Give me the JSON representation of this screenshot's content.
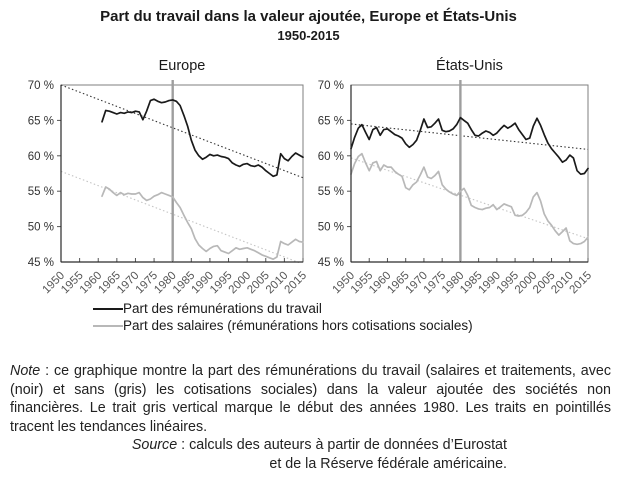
{
  "title": "Part du travail dans la valeur ajoutée, Europe et États-Unis",
  "subtitle": "1950-2015",
  "legend": [
    {
      "label": "Part des rémunérations du travail",
      "color": "#1a1a1a"
    },
    {
      "label": "Part des salaires (rémunérations hors cotisations sociales)",
      "color": "#b8b8b8"
    }
  ],
  "note": {
    "label": "Note",
    "text": " : ce graphique montre la part des rémunérations du travail (salaires et traitements, avec (noir) et sans (gris) les cotisations sociales) dans la valeur ajoutée des sociétés non financières. Le trait gris vertical marque le début des années 1980. Les traits en pointillés tracent les tendances linéaires."
  },
  "source": {
    "label": "Source",
    "line1": " : calculs des auteurs à partir de données d’Eurostat",
    "line2": "et de la Réserve fédérale américaine."
  },
  "colors": {
    "series_black": "#1a1a1a",
    "series_gray": "#b8b8b8",
    "trend_black": "#333333",
    "trend_gray": "#c4c4c4",
    "vline_gray": "#9e9e9e",
    "box_border": "#7f7f7f"
  },
  "chart_data": [
    {
      "type": "line",
      "title": "Europe",
      "xlim": [
        1950,
        2015
      ],
      "ylim": [
        45,
        70
      ],
      "xticks": [
        1950,
        1955,
        1960,
        1965,
        1970,
        1975,
        1980,
        1985,
        1990,
        1995,
        2000,
        2005,
        2010,
        2015
      ],
      "yticks": [
        70,
        65,
        60,
        55,
        50,
        45
      ],
      "ytick_suffix": " %",
      "vline_x": 1980,
      "x": [
        1961,
        1962,
        1963,
        1964,
        1965,
        1966,
        1967,
        1968,
        1969,
        1970,
        1971,
        1972,
        1973,
        1974,
        1975,
        1976,
        1977,
        1978,
        1979,
        1980,
        1981,
        1982,
        1983,
        1984,
        1985,
        1986,
        1987,
        1988,
        1989,
        1990,
        1991,
        1992,
        1993,
        1994,
        1995,
        1996,
        1997,
        1998,
        1999,
        2000,
        2001,
        2002,
        2003,
        2004,
        2005,
        2006,
        2007,
        2008,
        2009,
        2010,
        2011,
        2012,
        2013,
        2014,
        2015
      ],
      "series": [
        {
          "name": "Part des rémunérations du travail",
          "color": "#1a1a1a",
          "values": [
            64.8,
            66.4,
            66.3,
            66.1,
            65.9,
            66.1,
            66.0,
            66.2,
            66.1,
            66.3,
            66.2,
            65.1,
            66.3,
            67.8,
            68.0,
            67.7,
            67.5,
            67.6,
            67.8,
            67.9,
            67.7,
            67.1,
            65.7,
            64.2,
            62.2,
            60.8,
            60.0,
            59.5,
            59.8,
            60.2,
            60.0,
            60.1,
            59.9,
            59.8,
            59.6,
            59.0,
            58.7,
            58.5,
            58.8,
            58.9,
            58.6,
            58.5,
            58.7,
            58.4,
            57.9,
            57.5,
            57.1,
            57.3,
            60.3,
            59.6,
            59.3,
            59.9,
            60.4,
            60.1,
            59.8
          ]
        },
        {
          "name": "Part des salaires (rémunérations hors cotisations sociales)",
          "color": "#b8b8b8",
          "values": [
            54.3,
            55.6,
            55.3,
            54.8,
            54.4,
            54.8,
            54.5,
            54.7,
            54.6,
            54.6,
            54.8,
            54.1,
            53.7,
            53.9,
            54.3,
            54.5,
            54.8,
            54.6,
            54.4,
            54.2,
            53.4,
            52.7,
            51.6,
            50.6,
            49.7,
            48.3,
            47.4,
            46.9,
            46.5,
            46.9,
            47.2,
            47.3,
            46.6,
            46.4,
            46.2,
            46.6,
            47.0,
            46.8,
            46.9,
            47.0,
            46.8,
            46.6,
            46.3,
            46.0,
            45.8,
            45.6,
            45.4,
            45.7,
            47.9,
            47.6,
            47.4,
            47.8,
            48.2,
            47.9,
            47.8
          ]
        }
      ],
      "trend_lines": [
        {
          "name": "tendance rémunérations",
          "color": "#333333",
          "start": [
            1950,
            70.0
          ],
          "end": [
            2015,
            56.9
          ]
        },
        {
          "name": "tendance salaires",
          "color": "#c4c4c4",
          "start": [
            1950,
            57.8
          ],
          "end": [
            2015,
            44.7
          ]
        }
      ]
    },
    {
      "type": "line",
      "title": "États-Unis",
      "xlim": [
        1950,
        2015
      ],
      "ylim": [
        45,
        70
      ],
      "xticks": [
        1950,
        1955,
        1960,
        1965,
        1970,
        1975,
        1980,
        1985,
        1990,
        1995,
        2000,
        2005,
        2010,
        2015
      ],
      "yticks": [
        70,
        65,
        60,
        55,
        50,
        45
      ],
      "ytick_suffix": " %",
      "vline_x": 1980,
      "x": [
        1950,
        1951,
        1952,
        1953,
        1954,
        1955,
        1956,
        1957,
        1958,
        1959,
        1960,
        1961,
        1962,
        1963,
        1964,
        1965,
        1966,
        1967,
        1968,
        1969,
        1970,
        1971,
        1972,
        1973,
        1974,
        1975,
        1976,
        1977,
        1978,
        1979,
        1980,
        1981,
        1982,
        1983,
        1984,
        1985,
        1986,
        1987,
        1988,
        1989,
        1990,
        1991,
        1992,
        1993,
        1994,
        1995,
        1996,
        1997,
        1998,
        1999,
        2000,
        2001,
        2002,
        2003,
        2004,
        2005,
        2006,
        2007,
        2008,
        2009,
        2010,
        2011,
        2012,
        2013,
        2014,
        2015
      ],
      "series": [
        {
          "name": "Part des rémunérations du travail",
          "color": "#1a1a1a",
          "values": [
            61.0,
            62.6,
            63.9,
            64.4,
            63.3,
            62.3,
            63.7,
            64.0,
            62.9,
            63.7,
            63.8,
            63.4,
            63.0,
            62.8,
            62.5,
            61.7,
            61.2,
            61.6,
            62.2,
            63.6,
            65.2,
            64.0,
            64.1,
            64.6,
            65.2,
            63.6,
            63.4,
            63.5,
            63.8,
            64.4,
            65.4,
            65.0,
            64.6,
            63.7,
            62.9,
            62.8,
            63.2,
            63.5,
            63.3,
            62.9,
            63.2,
            63.8,
            64.3,
            63.9,
            64.2,
            64.6,
            63.7,
            63.0,
            62.3,
            62.5,
            64.2,
            65.3,
            64.3,
            63.0,
            61.8,
            61.0,
            60.4,
            59.8,
            59.1,
            59.4,
            60.1,
            59.7,
            57.9,
            57.4,
            57.5,
            58.2
          ]
        },
        {
          "name": "Part des salaires (rémunérations hors cotisations sociales)",
          "color": "#b8b8b8",
          "values": [
            57.4,
            58.9,
            59.9,
            60.3,
            59.0,
            57.9,
            59.0,
            59.2,
            57.9,
            58.7,
            58.4,
            58.4,
            57.8,
            57.4,
            57.1,
            55.5,
            55.2,
            55.9,
            56.3,
            57.3,
            58.4,
            57.0,
            56.8,
            57.2,
            57.8,
            55.9,
            55.3,
            54.9,
            54.6,
            54.4,
            55.0,
            55.4,
            54.4,
            53.0,
            52.7,
            52.5,
            52.4,
            52.6,
            52.7,
            53.1,
            52.4,
            52.8,
            53.2,
            53.0,
            52.8,
            51.6,
            51.5,
            51.6,
            52.0,
            52.7,
            54.2,
            54.8,
            53.6,
            51.8,
            50.8,
            50.2,
            49.4,
            48.8,
            49.3,
            49.8,
            48.0,
            47.6,
            47.5,
            47.6,
            47.9,
            48.5
          ]
        }
      ],
      "trend_lines": [
        {
          "name": "tendance rémunérations",
          "color": "#333333",
          "start": [
            1950,
            64.5
          ],
          "end": [
            2015,
            60.9
          ]
        },
        {
          "name": "tendance salaires",
          "color": "#c4c4c4",
          "start": [
            1950,
            59.7
          ],
          "end": [
            2015,
            48.3
          ]
        }
      ]
    }
  ]
}
